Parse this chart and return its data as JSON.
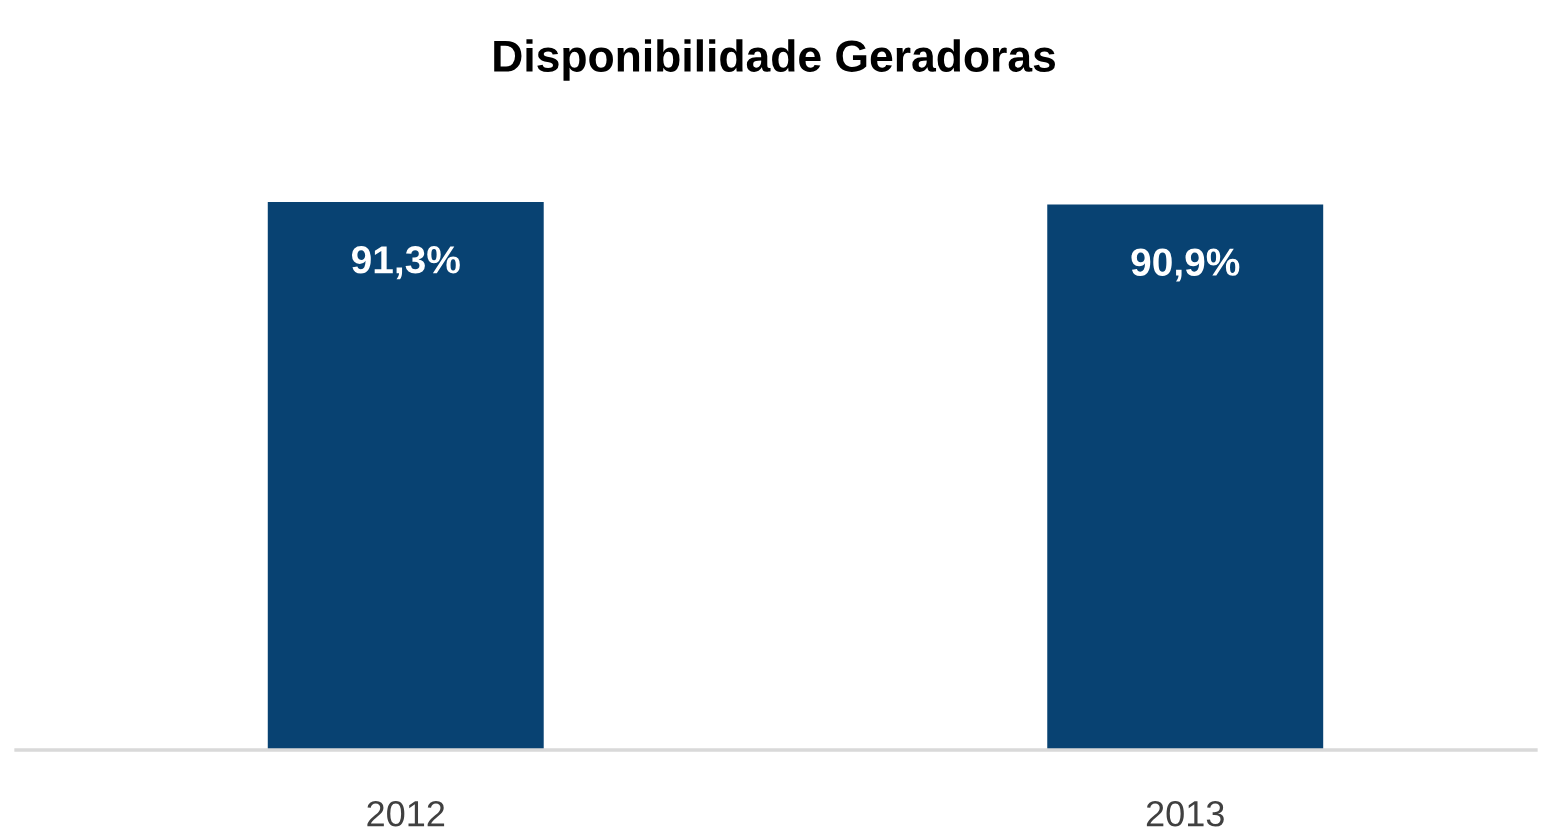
{
  "chart_data": {
    "type": "bar",
    "title": "Disponibilidade Geradoras",
    "categories": [
      "2012",
      "2013"
    ],
    "values": [
      91.3,
      90.9
    ],
    "value_labels": [
      "91,3%",
      "90,9%"
    ],
    "color": "#084272",
    "grid": false,
    "legend": false
  }
}
